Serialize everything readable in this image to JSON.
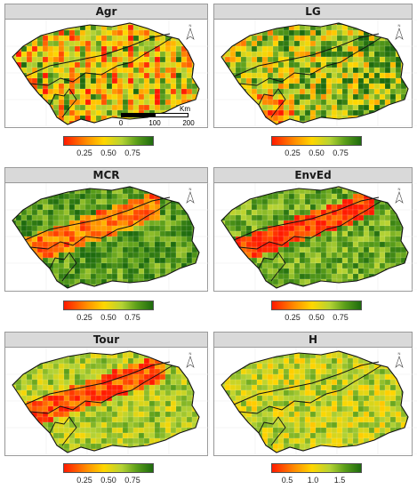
{
  "panels": [
    {
      "title": "Agr",
      "scale": "a",
      "ticks": [
        "0.25",
        "0.50",
        "0.75"
      ]
    },
    {
      "title": "LG",
      "scale": "a",
      "ticks": [
        "0.25",
        "0.50",
        "0.75"
      ]
    },
    {
      "title": "MCR",
      "scale": "a",
      "ticks": [
        "0.25",
        "0.50",
        "0.75"
      ]
    },
    {
      "title": "EnvEd",
      "scale": "a",
      "ticks": [
        "0.25",
        "0.50",
        "0.75"
      ]
    },
    {
      "title": "Tour",
      "scale": "a",
      "ticks": [
        "0.25",
        "0.50",
        "0.75"
      ]
    },
    {
      "title": "H",
      "scale": "b",
      "ticks": [
        "0.5",
        "1.0",
        "1.5"
      ]
    }
  ],
  "north_arrow": "N",
  "scalebar": {
    "unit": "Km",
    "labels": [
      "0",
      "100",
      "200"
    ]
  },
  "colors": {
    "low": "#ff1a00",
    "mid": "#ffd700",
    "high": "#1e6b0e",
    "outline": "#111111"
  }
}
